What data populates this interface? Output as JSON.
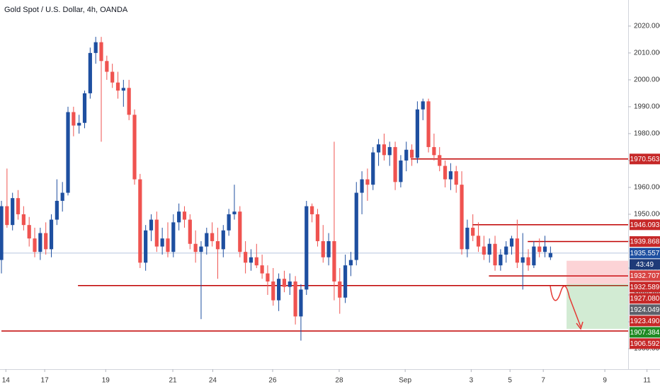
{
  "chart_data": {
    "type": "candlestick",
    "title": "Gold Spot / U.S. Dollar, 4h, OANDA",
    "up_color": "#1e4fa0",
    "down_color": "#ef5350",
    "open": [
      1933,
      1953,
      1946,
      1956,
      1950,
      1946,
      1941,
      1936,
      1943,
      1937,
      1948,
      1955,
      1958,
      1988,
      1983,
      1984,
      1995,
      2010,
      2014,
      2007,
      2003,
      1999,
      1996,
      1997,
      1987,
      1963,
      1932,
      1944,
      1948,
      1938,
      1941,
      1936,
      1947,
      1951,
      1948,
      1939,
      1936,
      1938,
      1943,
      1940,
      1937,
      1944,
      1950,
      1951,
      1936,
      1932,
      1934,
      1931,
      1928,
      1925,
      1918,
      1926,
      1923,
      1925,
      1912,
      1922,
      1953,
      1950,
      1940,
      1934,
      1940,
      1925,
      1919,
      1931,
      1933,
      1958,
      1963,
      1961,
      1973,
      1976,
      1972,
      1975,
      1962,
      1970,
      1974,
      1971,
      1989,
      1992,
      1975,
      1972,
      1968,
      1963,
      1966,
      1961,
      1937,
      1945,
      1942,
      1938,
      1935,
      1939,
      1931,
      1935,
      1938,
      1941,
      1932,
      1934,
      1931,
      1938,
      1936,
      1934
    ],
    "high": [
      1955,
      1967,
      1958,
      1959,
      1953,
      1949,
      1945,
      1945,
      1947,
      1950,
      1963,
      1962,
      1990,
      1990,
      1987,
      1996,
      2012,
      2016,
      2016,
      2009,
      2006,
      2003,
      2000,
      2000,
      1989,
      1965,
      1946,
      1950,
      1951,
      1945,
      1947,
      1950,
      1954,
      1953,
      1950,
      1944,
      1940,
      1945,
      1947,
      1945,
      1946,
      1952,
      1961,
      1953,
      1940,
      1937,
      1939,
      1935,
      1931,
      1930,
      1928,
      1929,
      1928,
      1927,
      1924,
      1955,
      1954,
      1952,
      1946,
      1943,
      1977,
      1930,
      1935,
      1936,
      1962,
      1966,
      1967,
      1975,
      1978,
      1980,
      1977,
      1977,
      1972,
      1977,
      1976,
      1992,
      1993,
      1993,
      1980,
      1975,
      1970,
      1969,
      1968,
      1966,
      1948,
      1950,
      1947,
      1942,
      1941,
      1942,
      1937,
      1940,
      1942,
      1948,
      1943,
      1937,
      1940,
      1941,
      1942,
      1938
    ],
    "low": [
      1928,
      1945,
      1944,
      1948,
      1944,
      1938,
      1934,
      1933,
      1935,
      1934,
      1946,
      1951,
      1957,
      1979,
      1980,
      1982,
      1993,
      2006,
      1977,
      2000,
      1997,
      1993,
      1990,
      1985,
      1961,
      1930,
      1929,
      1940,
      1936,
      1935,
      1934,
      1934,
      1944,
      1945,
      1937,
      1932,
      1911,
      1935,
      1938,
      1926,
      1934,
      1942,
      1948,
      1934,
      1928,
      1929,
      1930,
      1926,
      1920,
      1916,
      1914,
      1921,
      1920,
      1909,
      1903,
      1920,
      1947,
      1938,
      1932,
      1931,
      1918,
      1913,
      1917,
      1927,
      1931,
      1950,
      1955,
      1959,
      1968,
      1970,
      1968,
      1959,
      1960,
      1966,
      1968,
      1969,
      1985,
      1973,
      1970,
      1966,
      1960,
      1959,
      1958,
      1935,
      1934,
      1940,
      1936,
      1933,
      1932,
      1929,
      1929,
      1932,
      1935,
      1930,
      1922,
      1929,
      1930,
      1934,
      1934,
      1933
    ],
    "close": [
      1953,
      1946,
      1956,
      1950,
      1946,
      1941,
      1936,
      1943,
      1937,
      1948,
      1955,
      1958,
      1988,
      1983,
      1984,
      1995,
      2010,
      2014,
      2007,
      2003,
      1999,
      1996,
      1997,
      1987,
      1963,
      1932,
      1944,
      1948,
      1938,
      1941,
      1936,
      1947,
      1951,
      1948,
      1939,
      1936,
      1938,
      1943,
      1940,
      1937,
      1944,
      1950,
      1951,
      1936,
      1932,
      1934,
      1931,
      1928,
      1925,
      1918,
      1926,
      1923,
      1925,
      1912,
      1922,
      1953,
      1950,
      1940,
      1934,
      1940,
      1925,
      1919,
      1931,
      1933,
      1958,
      1963,
      1961,
      1973,
      1976,
      1972,
      1975,
      1962,
      1970,
      1974,
      1971,
      1989,
      1992,
      1975,
      1972,
      1968,
      1963,
      1966,
      1961,
      1937,
      1945,
      1942,
      1938,
      1935,
      1939,
      1931,
      1935,
      1938,
      1941,
      1932,
      1934,
      1931,
      1938,
      1936,
      1938,
      1935.6
    ],
    "ylim": [
      1892.9,
      2029.7
    ],
    "yticks": [
      {
        "value": 1900,
        "label": "1900.000"
      },
      {
        "value": 1910,
        "label": "1910.000"
      },
      {
        "value": 1920,
        "label": "1920.000"
      },
      {
        "value": 1930,
        "label": "1930.000"
      },
      {
        "value": 1940,
        "label": "1940.000"
      },
      {
        "value": 1950,
        "label": "1950.000"
      },
      {
        "value": 1960,
        "label": "1960.000"
      },
      {
        "value": 1970,
        "label": "1970.000"
      },
      {
        "value": 1980,
        "label": "1980.000"
      },
      {
        "value": 1990,
        "label": "1990.000"
      },
      {
        "value": 2000,
        "label": "2000.000"
      },
      {
        "value": 2010,
        "label": "2010.000"
      },
      {
        "value": 2020,
        "label": "2020.000"
      }
    ],
    "xlim": [
      -0.26,
      113.0
    ],
    "xticks": [
      {
        "value": 0.8,
        "label": "14"
      },
      {
        "value": 7.8,
        "label": "17"
      },
      {
        "value": 18.8,
        "label": "19"
      },
      {
        "value": 30.9,
        "label": "21"
      },
      {
        "value": 38.1,
        "label": "24"
      },
      {
        "value": 48.9,
        "label": "26"
      },
      {
        "value": 60.9,
        "label": "28"
      },
      {
        "value": 72.8,
        "label": "Sep"
      },
      {
        "value": 84.7,
        "label": "3"
      },
      {
        "value": 91.7,
        "label": "5"
      },
      {
        "value": 97.7,
        "label": "7"
      },
      {
        "value": 108.8,
        "label": "9"
      },
      {
        "value": 116.4,
        "label": "11"
      }
    ],
    "price_labels": [
      {
        "value": 1970.563,
        "label": "1970.563",
        "color": "#c62828",
        "line_start": 73.8
      },
      {
        "value": 1946.093,
        "label": "1946.093",
        "color": "#c62828",
        "line_start": 84.9
      },
      {
        "value": 1939.868,
        "label": "1939.868",
        "color": "#c62828",
        "line_start": 94.9
      },
      {
        "value": 1935.557,
        "label": "1935.557",
        "color": "#1e4fa0",
        "countdown": "43:49",
        "countdown_color": "#1e3a78",
        "last": true
      },
      {
        "value": 1932.707,
        "label": "1932.707",
        "color": "#d84343",
        "role": "stop"
      },
      {
        "value": 1932.589,
        "label": "1932.589",
        "color": "#c62828"
      },
      {
        "value": 1927.08,
        "label": "1927.080",
        "color": "#c62828",
        "line_start": 87.9
      },
      {
        "value": 1924.049,
        "label": "1924.049",
        "color": "#5d606b",
        "role": "entry"
      },
      {
        "value": 1923.49,
        "label": "1923.490",
        "color": "#c62828",
        "line_start": 13.8
      },
      {
        "value": 1907.384,
        "label": "1907.384",
        "color": "#1f8b24",
        "role": "target"
      },
      {
        "value": 1906.592,
        "label": "1906.592",
        "color": "#c62828",
        "line_start": 0
      }
    ],
    "position_start": 101.9
  }
}
